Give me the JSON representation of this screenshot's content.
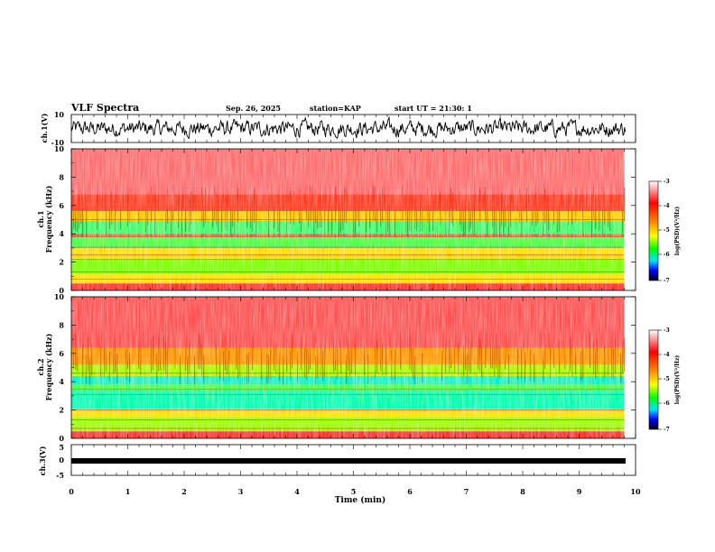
{
  "header": {
    "title": "VLF Spectra",
    "date": "Sep. 26, 2025",
    "station": "station=KAP",
    "start": "start UT =  21:30: 1"
  },
  "colorbar": {
    "label": "log(PSD)(V²/Hz)",
    "ticks": [
      "-3",
      "-4",
      "-5",
      "-6",
      "-7"
    ],
    "colors": [
      "#ff0000",
      "#ff8c00",
      "#ffff00",
      "#00ff00",
      "#00e0ff",
      "#0000ff",
      "#000000"
    ]
  },
  "chart_data": [
    {
      "type": "line",
      "name": "ch1-waveform",
      "ylabel": "ch.1(V)",
      "ylim": [
        -10,
        10
      ],
      "yticks": [
        "10",
        "-10"
      ],
      "xlim": [
        0,
        10
      ],
      "description_values": "random waveform, amplitude approx ±7 V"
    },
    {
      "type": "heatmap",
      "name": "ch1-spectrogram",
      "ylabel": "ch.1\nFrequency (kHz)",
      "ylabel_top": "ch.1",
      "ylabel_bottom": "Frequency (kHz)",
      "ylim": [
        0,
        10
      ],
      "yticks": [
        "0",
        "2",
        "4",
        "6",
        "8",
        "10"
      ],
      "xlim": [
        0,
        9.8
      ],
      "bands": [
        {
          "from": 0,
          "to": 0.5,
          "color": "#ff3030"
        },
        {
          "from": 0.5,
          "to": 1.2,
          "color": "#ffe000"
        },
        {
          "from": 1.2,
          "to": 2.2,
          "color": "#7cff00"
        },
        {
          "from": 2.2,
          "to": 3.0,
          "color": "#ffe000"
        },
        {
          "from": 3.0,
          "to": 3.8,
          "color": "#40ff40"
        },
        {
          "from": 3.8,
          "to": 4.0,
          "color": "#ff4040"
        },
        {
          "from": 4.0,
          "to": 4.9,
          "color": "#30ff70"
        },
        {
          "from": 4.9,
          "to": 5.6,
          "color": "#ffd000"
        },
        {
          "from": 5.6,
          "to": 6.8,
          "color": "#ff3a20"
        },
        {
          "from": 6.8,
          "to": 10,
          "color": "#ff6a6a"
        }
      ],
      "lines_khz": [
        0.8,
        1.3,
        2.2,
        2.5,
        3.05,
        3.8,
        5.0
      ]
    },
    {
      "type": "heatmap",
      "name": "ch2-spectrogram",
      "ylabel": "ch.2\nFrequency (kHz)",
      "ylabel_top": "ch.2",
      "ylabel_bottom": "Frequency (kHz)",
      "ylim": [
        0,
        10
      ],
      "yticks": [
        "0",
        "2",
        "4",
        "6",
        "8",
        "10"
      ],
      "xlim": [
        0,
        9.8
      ],
      "bands": [
        {
          "from": 0,
          "to": 0.5,
          "color": "#ff3030"
        },
        {
          "from": 0.5,
          "to": 1.5,
          "color": "#9cff00"
        },
        {
          "from": 1.5,
          "to": 2.1,
          "color": "#ffe000"
        },
        {
          "from": 2.1,
          "to": 3.4,
          "color": "#00ffb0"
        },
        {
          "from": 3.4,
          "to": 3.8,
          "color": "#40ff40"
        },
        {
          "from": 3.8,
          "to": 4.4,
          "color": "#00f0d0"
        },
        {
          "from": 4.4,
          "to": 5.2,
          "color": "#a8ff00"
        },
        {
          "from": 5.2,
          "to": 6.4,
          "color": "#ff9a00"
        },
        {
          "from": 6.4,
          "to": 10,
          "color": "#ff5050"
        }
      ],
      "lines_khz": [
        0.7,
        1.3,
        2.0,
        3.1,
        3.45,
        4.6
      ]
    },
    {
      "type": "line",
      "name": "ch3-waveform",
      "ylabel": "ch.3(V)",
      "ylim": [
        -5,
        5
      ],
      "yticks": [
        "5",
        "0",
        "-5"
      ],
      "xlim": [
        0,
        10
      ],
      "description_values": "nearly constant about -1 V"
    }
  ],
  "xaxis": {
    "label": "Time (min)",
    "ticks": [
      "0",
      "1",
      "2",
      "3",
      "4",
      "5",
      "6",
      "7",
      "8",
      "9",
      "10"
    ],
    "range": [
      0,
      10
    ]
  }
}
